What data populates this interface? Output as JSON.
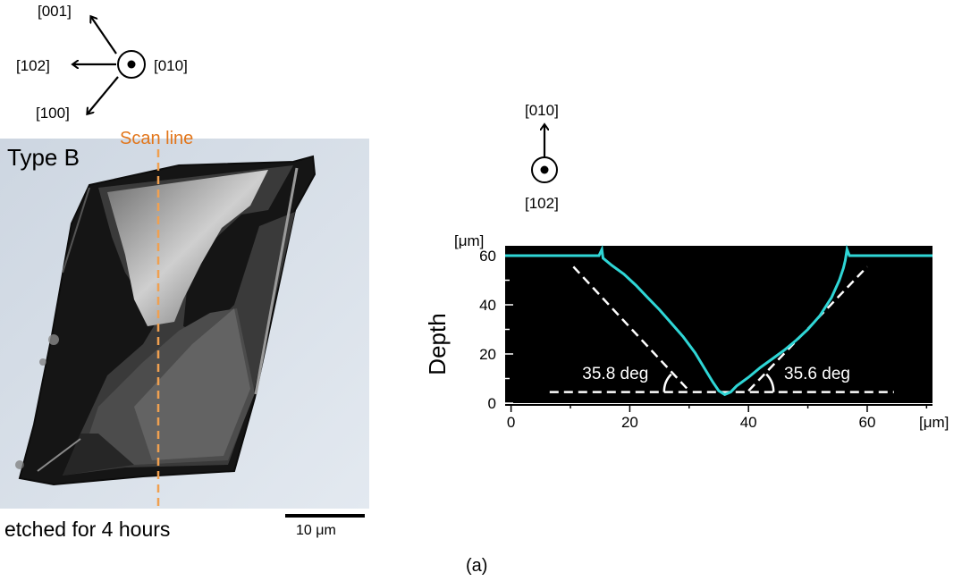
{
  "crystal_axes": {
    "up_left": "[001]",
    "left": "[102]",
    "down_left": "[100]",
    "out_of_plane": "[010]"
  },
  "micrograph": {
    "type_label": "Type B",
    "scan_line_label": "Scan line",
    "note": "etched for 4 hours",
    "scale_bar_label": "10 μm",
    "scan_line_color": "#f0a050"
  },
  "profile_axes": {
    "up": "[010]",
    "out_of_plane": "[102]"
  },
  "chart_data": {
    "type": "line",
    "ylabel": "Depth",
    "y_unit": "[μm]",
    "x_unit": "[μm]",
    "xlim": [
      -1,
      71
    ],
    "ylim": [
      0,
      64
    ],
    "x_ticks": [
      0,
      20,
      40,
      60
    ],
    "y_ticks": [
      0,
      20,
      40,
      60
    ],
    "background": "#000000",
    "series": [
      {
        "color": "#2fd6d6",
        "points": [
          [
            -1,
            60
          ],
          [
            14.8,
            60
          ],
          [
            15.3,
            62.5
          ],
          [
            15.5,
            59
          ],
          [
            17,
            56
          ],
          [
            19,
            52.5
          ],
          [
            21,
            48
          ],
          [
            23,
            43
          ],
          [
            25,
            38
          ],
          [
            27,
            32.5
          ],
          [
            29,
            27
          ],
          [
            31,
            20.5
          ],
          [
            32.5,
            14.5
          ],
          [
            34,
            8.5
          ],
          [
            35,
            5
          ],
          [
            36,
            3.5
          ],
          [
            37,
            4.5
          ],
          [
            38,
            7
          ],
          [
            40,
            10.5
          ],
          [
            42,
            14.5
          ],
          [
            44,
            18
          ],
          [
            46,
            21.5
          ],
          [
            48,
            25.5
          ],
          [
            50,
            30
          ],
          [
            52,
            35.5
          ],
          [
            54,
            43
          ],
          [
            55.3,
            50
          ],
          [
            56,
            55
          ],
          [
            56.3,
            58
          ],
          [
            56.6,
            62.5
          ],
          [
            57,
            60
          ],
          [
            71,
            60
          ]
        ]
      }
    ],
    "fit_lines": [
      {
        "points": [
          [
            10.5,
            55.5
          ],
          [
            30,
            5
          ]
        ],
        "style": "dashed"
      },
      {
        "points": [
          [
            40,
            5
          ],
          [
            60,
            55.5
          ]
        ],
        "style": "dashed"
      },
      {
        "points": [
          [
            6.5,
            4.5
          ],
          [
            64.5,
            4.5
          ]
        ],
        "style": "dashed"
      }
    ],
    "annotations": [
      {
        "text": "35.8 deg",
        "x": 12,
        "y": 12
      },
      {
        "text": "35.6 deg",
        "x": 46,
        "y": 12
      }
    ]
  },
  "caption": "(a)"
}
